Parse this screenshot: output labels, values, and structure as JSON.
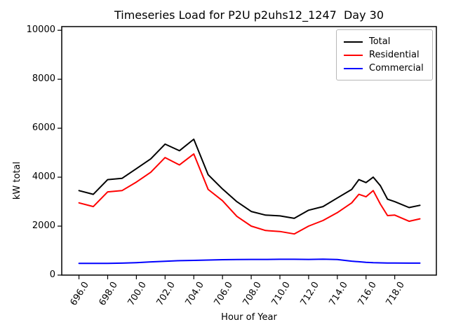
{
  "title": "Timeseries Load for P2U p2uhs12_1247  Day 30",
  "chart_data": {
    "type": "line",
    "title": "Timeseries Load for P2U p2uhs12_1247  Day 30",
    "xlabel": "Hour of Year",
    "ylabel": "kW total",
    "xlim": [
      694.8,
      720.9
    ],
    "ylim": [
      0,
      10150
    ],
    "grid": false,
    "legend_position": "upper right",
    "x_ticks": [
      696,
      698,
      700,
      702,
      704,
      706,
      708,
      710,
      712,
      714,
      716,
      718
    ],
    "x_tick_labels": [
      "696.0",
      "698.0",
      "700.0",
      "702.0",
      "704.0",
      "706.0",
      "708.0",
      "710.0",
      "712.0",
      "714.0",
      "716.0",
      "718.0"
    ],
    "y_ticks": [
      0,
      2000,
      4000,
      6000,
      8000,
      10000
    ],
    "y_tick_labels": [
      "0",
      "2000",
      "4000",
      "6000",
      "8000",
      "10000"
    ],
    "x": [
      696,
      697,
      698,
      699,
      700,
      701,
      702,
      703,
      704,
      705,
      706,
      707,
      708,
      709,
      710,
      711,
      712,
      713,
      714,
      715,
      715.5,
      716,
      716.5,
      717,
      717.5,
      718,
      719,
      719.75
    ],
    "series": [
      {
        "name": "Total",
        "color": "#000000",
        "values": [
          3450,
          3300,
          3900,
          3950,
          4350,
          4750,
          5350,
          5080,
          5550,
          4100,
          3520,
          3000,
          2600,
          2450,
          2420,
          2320,
          2650,
          2800,
          3150,
          3500,
          3900,
          3780,
          4000,
          3650,
          3100,
          3000,
          2760,
          2850
        ]
      },
      {
        "name": "Residential",
        "color": "#ff0000",
        "values": [
          2950,
          2800,
          3400,
          3450,
          3800,
          4200,
          4800,
          4500,
          4950,
          3500,
          3040,
          2400,
          2000,
          1820,
          1780,
          1680,
          2000,
          2230,
          2550,
          2950,
          3300,
          3200,
          3450,
          2900,
          2430,
          2450,
          2200,
          2300
        ]
      },
      {
        "name": "Commercial",
        "color": "#0000ff",
        "values": [
          480,
          480,
          480,
          490,
          510,
          540,
          565,
          590,
          600,
          615,
          630,
          635,
          640,
          640,
          645,
          645,
          640,
          650,
          635,
          570,
          545,
          520,
          505,
          500,
          495,
          495,
          490,
          490
        ]
      }
    ]
  }
}
